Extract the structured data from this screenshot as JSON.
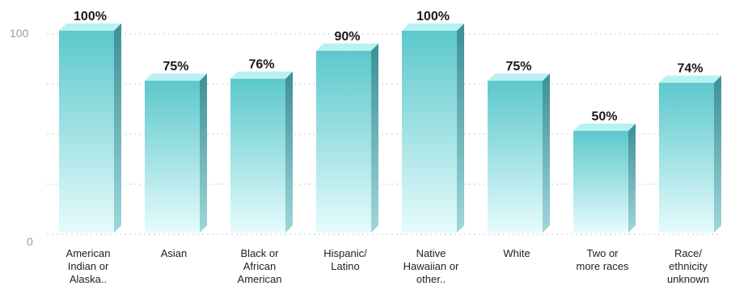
{
  "chart_data": {
    "type": "bar",
    "title": "",
    "xlabel": "",
    "ylabel": "",
    "ylim": [
      0,
      100
    ],
    "yticks": [
      "0",
      "100"
    ],
    "grid": true,
    "bar_color_top": "#5cc8cc",
    "bar_color_bottom": "#e6fbfc",
    "bar_side_color": "#3c8f95",
    "bar_cap_color": "#b9f1f3",
    "categories": [
      {
        "lines": [
          "American",
          "Indian or",
          "Alaska.."
        ]
      },
      {
        "lines": [
          "Asian"
        ]
      },
      {
        "lines": [
          "Black or",
          "African",
          "American"
        ]
      },
      {
        "lines": [
          "Hispanic/",
          "Latino"
        ]
      },
      {
        "lines": [
          "Native",
          "Hawaiian or",
          "other.."
        ]
      },
      {
        "lines": [
          "White"
        ]
      },
      {
        "lines": [
          "Two or",
          "more races"
        ]
      },
      {
        "lines": [
          "Race/",
          "ethnicity",
          "unknown"
        ]
      }
    ],
    "values": [
      100,
      75,
      76,
      90,
      100,
      75,
      50,
      74
    ],
    "value_labels": [
      "100%",
      "75%",
      "76%",
      "90%",
      "100%",
      "75%",
      "50%",
      "74%"
    ]
  }
}
